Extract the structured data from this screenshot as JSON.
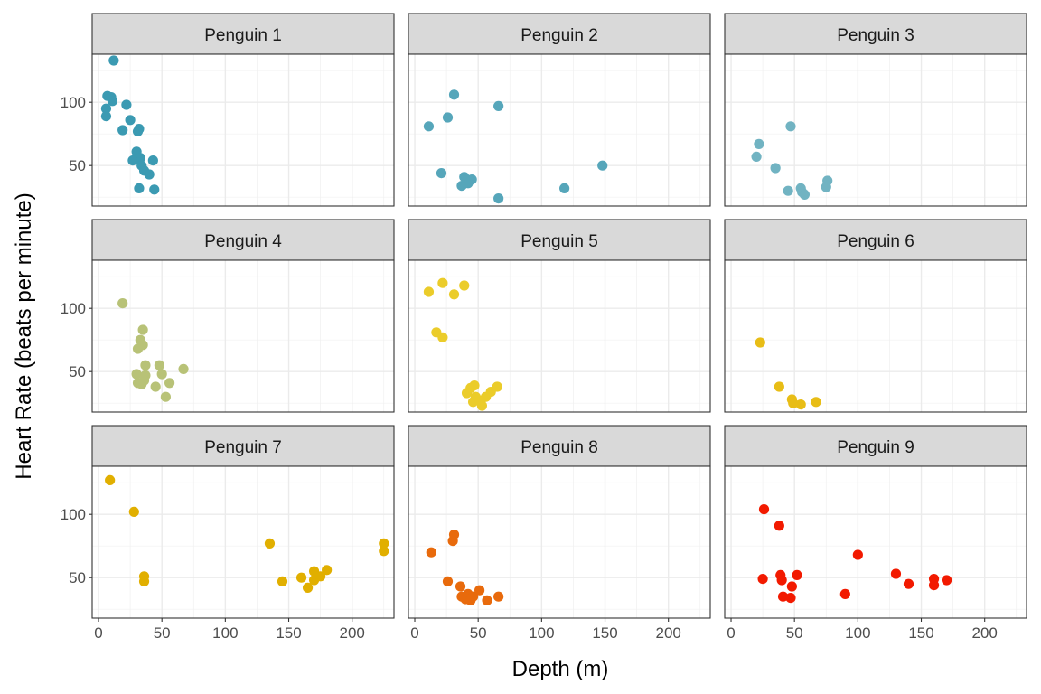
{
  "chart_data": {
    "type": "scatter",
    "layout": "facet_wrap 3x3",
    "xlabel": "Depth (m)",
    "ylabel": "Heart Rate (beats per minute)",
    "xlim": [
      -5,
      233
    ],
    "ylim": [
      18,
      138
    ],
    "x_ticks": [
      0,
      50,
      100,
      150,
      200
    ],
    "y_ticks": [
      50,
      100
    ],
    "grid": true,
    "facets": [
      {
        "label": "Penguin 1",
        "color": "#3b9ab2",
        "points": [
          [
            12,
            133
          ],
          [
            7,
            105
          ],
          [
            10,
            104
          ],
          [
            11,
            101
          ],
          [
            6,
            95
          ],
          [
            6,
            89
          ],
          [
            22,
            98
          ],
          [
            19,
            78
          ],
          [
            25,
            86
          ],
          [
            32,
            79
          ],
          [
            31,
            77
          ],
          [
            30,
            61
          ],
          [
            29,
            55
          ],
          [
            33,
            56
          ],
          [
            27,
            54
          ],
          [
            34,
            50
          ],
          [
            36,
            46
          ],
          [
            40,
            43
          ],
          [
            43,
            54
          ],
          [
            32,
            32
          ],
          [
            44,
            31
          ]
        ]
      },
      {
        "label": "Penguin 2",
        "color": "#56a6ba",
        "points": [
          [
            31,
            106
          ],
          [
            26,
            88
          ],
          [
            11,
            81
          ],
          [
            66,
            97
          ],
          [
            21,
            44
          ],
          [
            39,
            41
          ],
          [
            45,
            39
          ],
          [
            42,
            36
          ],
          [
            37,
            34
          ],
          [
            148,
            50
          ],
          [
            118,
            32
          ],
          [
            66,
            24
          ]
        ]
      },
      {
        "label": "Penguin 3",
        "color": "#71b3c2",
        "points": [
          [
            22,
            67
          ],
          [
            20,
            57
          ],
          [
            47,
            81
          ],
          [
            35,
            48
          ],
          [
            45,
            30
          ],
          [
            55,
            32
          ],
          [
            56,
            29
          ],
          [
            58,
            27
          ],
          [
            76,
            38
          ],
          [
            75,
            33
          ]
        ]
      },
      {
        "label": "Penguin 4",
        "color": "#b8c277",
        "points": [
          [
            19,
            104
          ],
          [
            35,
            83
          ],
          [
            33,
            75
          ],
          [
            35,
            71
          ],
          [
            31,
            68
          ],
          [
            37,
            55
          ],
          [
            30,
            48
          ],
          [
            37,
            47
          ],
          [
            36,
            43
          ],
          [
            31,
            41
          ],
          [
            34,
            40
          ],
          [
            48,
            55
          ],
          [
            50,
            48
          ],
          [
            56,
            41
          ],
          [
            45,
            38
          ],
          [
            53,
            30
          ],
          [
            67,
            52
          ]
        ]
      },
      {
        "label": "Penguin 5",
        "color": "#ebcc2a",
        "points": [
          [
            11,
            113
          ],
          [
            22,
            120
          ],
          [
            31,
            111
          ],
          [
            39,
            118
          ],
          [
            17,
            81
          ],
          [
            22,
            77
          ],
          [
            47,
            39
          ],
          [
            44,
            37
          ],
          [
            41,
            33
          ],
          [
            48,
            30
          ],
          [
            56,
            30
          ],
          [
            60,
            34
          ],
          [
            65,
            38
          ],
          [
            46,
            26
          ],
          [
            52,
            27
          ],
          [
            53,
            23
          ]
        ]
      },
      {
        "label": "Penguin 6",
        "color": "#e8bd16",
        "points": [
          [
            23,
            73
          ],
          [
            38,
            38
          ],
          [
            48,
            28
          ],
          [
            49,
            25
          ],
          [
            55,
            24
          ],
          [
            67,
            26
          ]
        ]
      },
      {
        "label": "Penguin 7",
        "color": "#e1af00",
        "points": [
          [
            9,
            127
          ],
          [
            28,
            102
          ],
          [
            36,
            51
          ],
          [
            36,
            47
          ],
          [
            135,
            77
          ],
          [
            145,
            47
          ],
          [
            160,
            50
          ],
          [
            165,
            42
          ],
          [
            170,
            55
          ],
          [
            170,
            48
          ],
          [
            175,
            51
          ],
          [
            180,
            56
          ],
          [
            225,
            77
          ],
          [
            225,
            71
          ]
        ]
      },
      {
        "label": "Penguin 8",
        "color": "#e86a0c",
        "points": [
          [
            13,
            70
          ],
          [
            31,
            84
          ],
          [
            30,
            79
          ],
          [
            26,
            47
          ],
          [
            36,
            43
          ],
          [
            37,
            35
          ],
          [
            40,
            33
          ],
          [
            42,
            37
          ],
          [
            44,
            32
          ],
          [
            46,
            35
          ],
          [
            51,
            40
          ],
          [
            57,
            32
          ],
          [
            66,
            35
          ]
        ]
      },
      {
        "label": "Penguin 9",
        "color": "#f21a00",
        "points": [
          [
            26,
            104
          ],
          [
            38,
            91
          ],
          [
            25,
            49
          ],
          [
            39,
            52
          ],
          [
            40,
            48
          ],
          [
            41,
            35
          ],
          [
            47,
            34
          ],
          [
            48,
            43
          ],
          [
            52,
            52
          ],
          [
            90,
            37
          ],
          [
            100,
            68
          ],
          [
            130,
            53
          ],
          [
            140,
            45
          ],
          [
            160,
            49
          ],
          [
            160,
            44
          ],
          [
            170,
            48
          ]
        ]
      }
    ]
  }
}
